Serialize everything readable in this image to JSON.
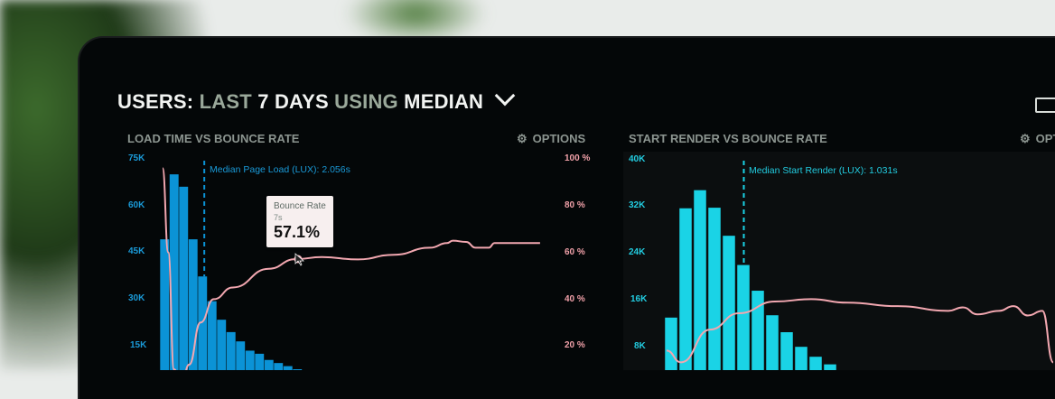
{
  "header": {
    "parts": [
      "USERS:",
      "LAST",
      "7 DAYS",
      "USING",
      "MEDIAN"
    ],
    "dropdown_icon": "chevron-down-icon",
    "device_icon": "monitor-icon"
  },
  "colors": {
    "bar_left": "#0b93d6",
    "bar_right": "#1ad3e6",
    "bounce_line": "#f2a7b0",
    "background": "#040708"
  },
  "chart_data": [
    {
      "type": "bar",
      "title": "LOAD TIME VS BOUNCE RATE",
      "options_label": "OPTIONS",
      "options_icon": "gear-icon",
      "y_ticks_left": [
        "75K",
        "60K",
        "45K",
        "30K",
        "15K"
      ],
      "y_ticks_right": [
        "100 %",
        "80 %",
        "60 %",
        "40 %",
        "20 %"
      ],
      "ylim_left": [
        0,
        75000
      ],
      "ylim_right": [
        0,
        100
      ],
      "median_label": "Median Page Load (LUX): 2.056s",
      "median_seconds": 2.056,
      "bin_seconds": 0.5,
      "series": [
        {
          "type": "bar",
          "values": [
            49000,
            70000,
            66000,
            49000,
            37000,
            29000,
            23000,
            19000,
            16000,
            13000,
            12000,
            10000,
            9000,
            8000,
            7000
          ]
        },
        {
          "type": "line",
          "name": "Bounce Rate",
          "x": [
            0,
            0.3,
            0.6,
            1.0,
            1.4,
            2.0,
            2.7,
            3.7,
            5.6,
            7.0,
            8.4,
            10.3,
            12.2,
            14.1,
            15.0,
            15.3,
            16.0,
            16.5,
            17.2,
            17.5,
            19.9
          ],
          "y": [
            96,
            60,
            10,
            4,
            12,
            30,
            40,
            45,
            53,
            57.1,
            58,
            57,
            59,
            62,
            64,
            65,
            64.5,
            62,
            62,
            64,
            64
          ]
        }
      ],
      "tooltip": {
        "title": "Bounce Rate",
        "x_label": "7s",
        "value": "57.1%"
      }
    },
    {
      "type": "bar",
      "title": "START RENDER VS BOUNCE RATE",
      "options_label": "OPT",
      "options_icon": "gear-icon",
      "y_ticks_left": [
        "40K",
        "32K",
        "24K",
        "16K",
        "8K"
      ],
      "ylim_left": [
        0,
        40000
      ],
      "median_label": "Median Start Render (LUX): 1.031s",
      "median_seconds": 1.031,
      "bin_seconds": 0.2,
      "series": [
        {
          "type": "bar",
          "values": [
            13000,
            31700,
            34800,
            31800,
            27000,
            22000,
            17600,
            13400,
            10500,
            8000,
            6300,
            5000
          ]
        },
        {
          "type": "line",
          "name": "Bounce Rate",
          "x": [
            0,
            0.2,
            0.6,
            1.0,
            1.5,
            2.0,
            2.5,
            3.2,
            3.9,
            4.1,
            4.3,
            4.6,
            4.8,
            5.0,
            5.2,
            5.35
          ],
          "y": [
            18,
            13,
            27,
            34,
            39,
            40,
            38.5,
            37,
            35,
            36.5,
            33.5,
            35,
            37,
            33,
            35,
            13
          ]
        }
      ]
    }
  ]
}
